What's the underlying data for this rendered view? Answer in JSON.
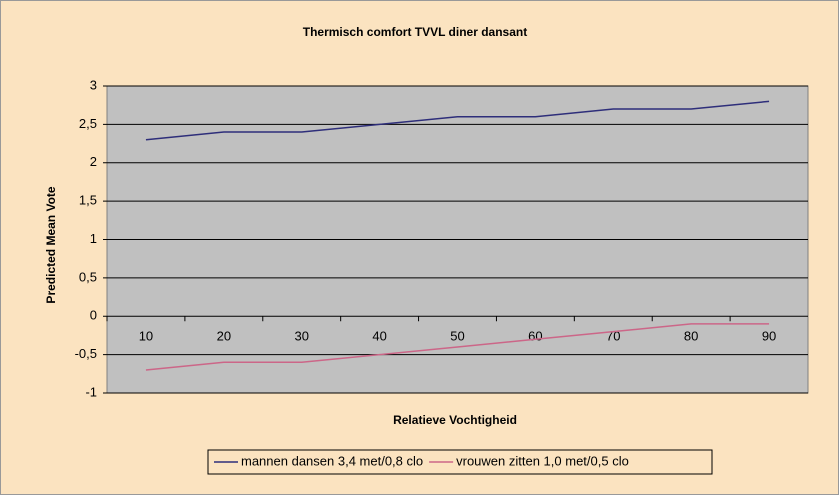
{
  "chart_data": {
    "type": "line",
    "title": "Thermisch comfort TVVL diner dansant",
    "xlabel": "Relatieve Vochtigheid",
    "ylabel": "Predicted Mean Vote",
    "categories": [
      "10",
      "20",
      "30",
      "40",
      "50",
      "60",
      "70",
      "80",
      "90"
    ],
    "series": [
      {
        "name": "mannen dansen 3,4 met/0,8 clo",
        "color": "#2e2e7a",
        "values": [
          2.3,
          2.4,
          2.4,
          2.5,
          2.6,
          2.6,
          2.7,
          2.7,
          2.8
        ]
      },
      {
        "name": "vrouwen zitten 1,0 met/0,5 clo",
        "color": "#cc6688",
        "values": [
          -0.7,
          -0.6,
          -0.6,
          -0.5,
          -0.4,
          -0.3,
          -0.2,
          -0.1,
          -0.1
        ]
      }
    ],
    "ylim": [
      -1,
      3
    ],
    "yticks": [
      -1,
      {
        "value": -0.5,
        "label": "-0,5"
      },
      0,
      {
        "value": 0.5,
        "label": "0,5"
      },
      1,
      {
        "value": 1.5,
        "label": "1,5"
      },
      2,
      {
        "value": 2.5,
        "label": "2,5"
      },
      3
    ],
    "grid": true,
    "legend": "bottom"
  }
}
